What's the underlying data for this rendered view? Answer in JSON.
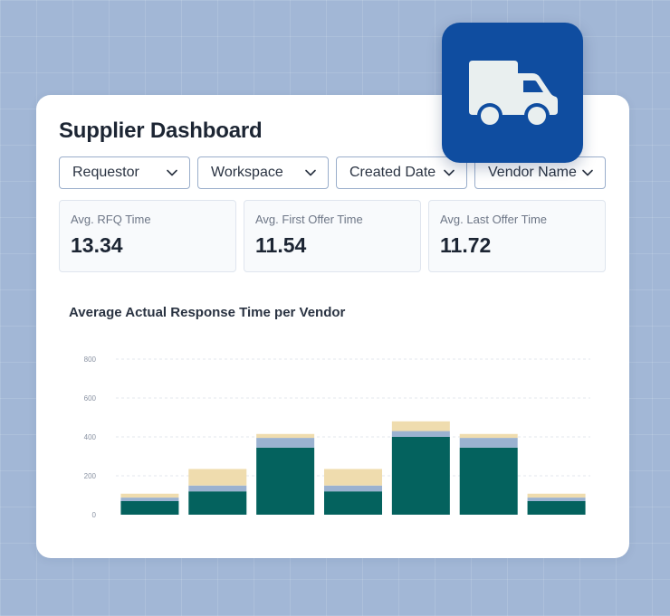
{
  "dashboard": {
    "title": "Supplier Dashboard"
  },
  "filters": [
    {
      "label": "Requestor"
    },
    {
      "label": "Workspace"
    },
    {
      "label": "Created Date"
    },
    {
      "label": "Vendor Name"
    }
  ],
  "stats": [
    {
      "label": "Avg. RFQ Time",
      "value": "13.34"
    },
    {
      "label": "Avg. First Offer Time",
      "value": "11.54"
    },
    {
      "label": "Avg. Last Offer Time",
      "value": "11.72"
    }
  ],
  "badge": {
    "icon": "truck-icon",
    "color": "#0f4da0"
  },
  "chart_data": {
    "type": "bar",
    "title": "Average Actual Response Time per Vendor",
    "stacked": true,
    "categories": [
      "",
      "",
      "",
      "",
      "",
      "",
      ""
    ],
    "series": [
      {
        "color": "#04625e",
        "values": [
          70,
          120,
          345,
          120,
          400,
          345,
          70
        ]
      },
      {
        "color": "#9bb2d0",
        "values": [
          18,
          30,
          50,
          30,
          30,
          50,
          18
        ]
      },
      {
        "color": "#efdcae",
        "values": [
          20,
          85,
          20,
          85,
          50,
          20,
          20
        ]
      }
    ],
    "yticks": [
      0,
      200,
      400,
      600,
      800
    ],
    "ylim": [
      0,
      800
    ],
    "grid": true,
    "legend": "none"
  }
}
